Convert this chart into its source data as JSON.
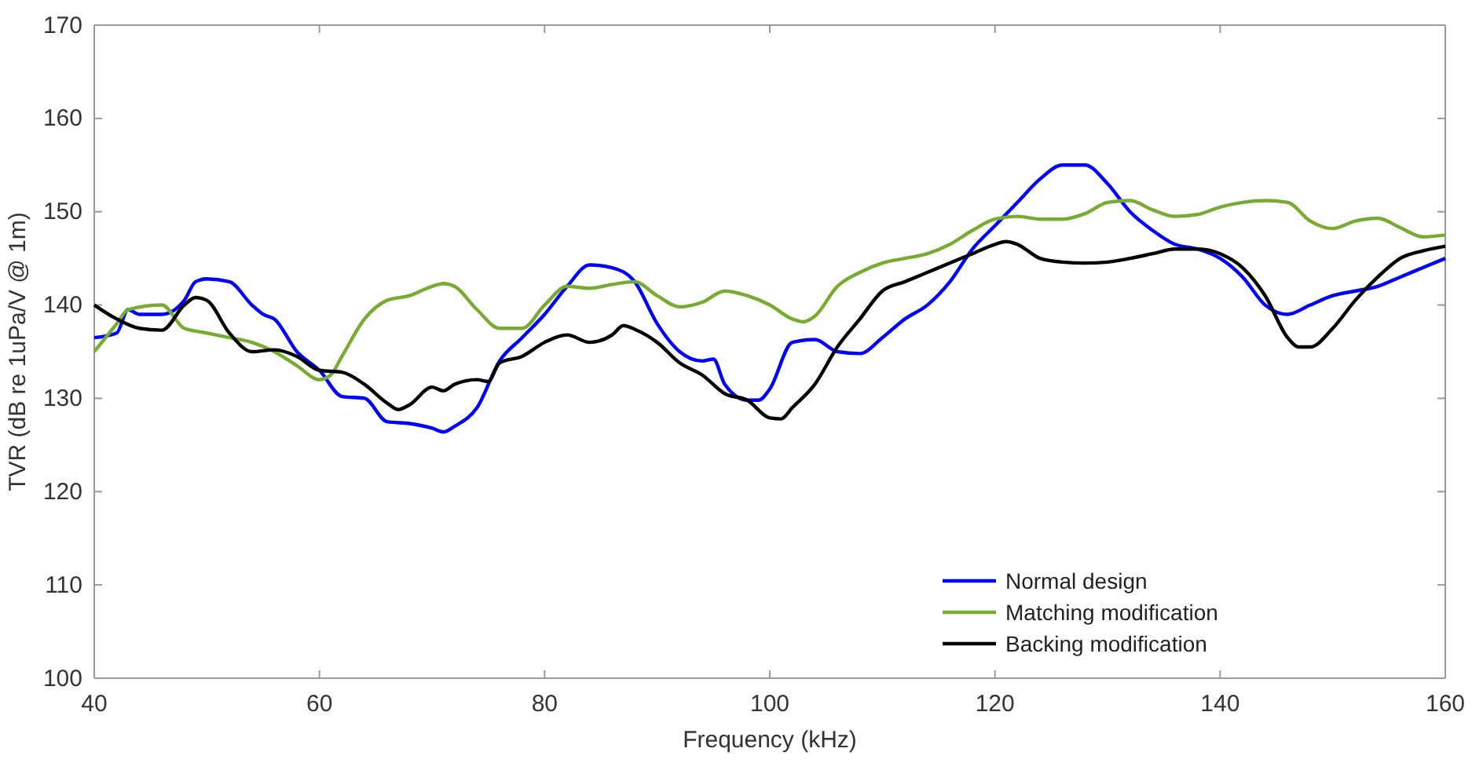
{
  "chart_data": {
    "type": "line",
    "xlabel": "Frequency (kHz)",
    "ylabel": "TVR (dB re 1uPa/V @ 1m)",
    "xlim": [
      40,
      160
    ],
    "xticks": [
      40,
      60,
      80,
      100,
      120,
      140,
      160
    ],
    "ylim": [
      100,
      170
    ],
    "yticks": [
      100,
      110,
      120,
      130,
      140,
      150,
      160,
      170
    ],
    "grid": false,
    "legend": "bottom right",
    "series": [
      {
        "name": "Normal design",
        "color": "#0000ff",
        "x": [
          40,
          42,
          43,
          44,
          46,
          48,
          49,
          50,
          52,
          54,
          55,
          56,
          58,
          60,
          62,
          64,
          66,
          68,
          70,
          71,
          72,
          74,
          76,
          78,
          80,
          82,
          84,
          86,
          88,
          90,
          92,
          94,
          95,
          96,
          98,
          99,
          100,
          102,
          104,
          106,
          108,
          110,
          112,
          114,
          116,
          118,
          120,
          122,
          124,
          126,
          128,
          130,
          132,
          134,
          136,
          138,
          140,
          142,
          144,
          146,
          148,
          150,
          152,
          154,
          156,
          158,
          160
        ],
        "values": [
          136.5,
          137,
          139.5,
          139,
          139,
          140.5,
          142.5,
          142.8,
          142.5,
          140,
          139,
          138.5,
          135,
          133,
          130.2,
          130,
          127.5,
          127.3,
          126.8,
          126.4,
          127,
          129,
          134,
          136.5,
          139,
          142,
          144.3,
          144,
          142.5,
          138,
          135,
          134,
          134.2,
          131.5,
          129.8,
          129.8,
          131,
          136,
          136.3,
          135,
          134.8,
          136.5,
          138.5,
          140,
          142.5,
          146,
          148.5,
          151,
          153.5,
          155,
          155,
          153,
          150,
          148,
          146.5,
          146,
          145,
          143,
          140,
          139,
          140,
          141,
          141.5,
          142,
          143,
          144,
          145
        ]
      },
      {
        "name": "Matching modification",
        "color": "#77ac30",
        "x": [
          40,
          42,
          43,
          46,
          48,
          50,
          52,
          54,
          56,
          58,
          60,
          61,
          62,
          64,
          66,
          68,
          70,
          71,
          72,
          74,
          76,
          78,
          80,
          82,
          84,
          86,
          88,
          90,
          92,
          94,
          96,
          98,
          100,
          102,
          103,
          104,
          106,
          108,
          110,
          112,
          114,
          116,
          118,
          120,
          122,
          124,
          126,
          128,
          130,
          132,
          134,
          136,
          138,
          140,
          142,
          144,
          146,
          148,
          150,
          152,
          154,
          156,
          158,
          160
        ],
        "values": [
          135,
          138,
          139.5,
          140,
          137.5,
          137,
          136.5,
          136,
          135,
          133.5,
          132,
          132.5,
          134.5,
          138.5,
          140.5,
          141,
          142,
          142.3,
          142,
          139.5,
          137.5,
          137.5,
          140,
          142,
          141.8,
          142.2,
          142.5,
          141,
          139.8,
          140.3,
          141.5,
          141,
          140,
          138.5,
          138.2,
          138.8,
          142,
          143.5,
          144.5,
          145,
          145.5,
          146.5,
          148,
          149.2,
          149.5,
          149.2,
          149.2,
          149.8,
          151,
          151.2,
          150.2,
          149.5,
          149.7,
          150.5,
          151,
          151.2,
          151,
          149,
          148.2,
          149,
          149.3,
          148.3,
          147.3,
          147.5
        ]
      },
      {
        "name": "Backing modification",
        "color": "#000000",
        "x": [
          40,
          42,
          44,
          46,
          48,
          49,
          50,
          52,
          54,
          56,
          58,
          60,
          62,
          64,
          66,
          67,
          68,
          70,
          71,
          72,
          74,
          75,
          76,
          78,
          80,
          82,
          84,
          86,
          87,
          88,
          90,
          92,
          94,
          96,
          98,
          100,
          101,
          102,
          104,
          106,
          108,
          110,
          112,
          114,
          116,
          118,
          120,
          121,
          122,
          124,
          126,
          128,
          130,
          132,
          134,
          136,
          138,
          140,
          142,
          144,
          146,
          147,
          148,
          150,
          152,
          154,
          156,
          158,
          160
        ],
        "values": [
          140,
          138.5,
          137.5,
          137.3,
          140,
          140.8,
          140.5,
          137,
          135,
          135.2,
          134.5,
          133,
          132.8,
          131.5,
          129.5,
          128.8,
          129.3,
          131.2,
          130.8,
          131.5,
          132,
          131.8,
          133.8,
          134.5,
          136,
          136.8,
          136,
          136.8,
          137.8,
          137.4,
          136,
          133.8,
          132.5,
          130.5,
          129.8,
          127.9,
          127.8,
          129,
          131.5,
          135.5,
          138.5,
          141.5,
          142.5,
          143.5,
          144.5,
          145.5,
          146.5,
          146.8,
          146.5,
          145,
          144.6,
          144.5,
          144.6,
          145,
          145.5,
          146,
          146,
          145.5,
          144,
          141,
          136.5,
          135.5,
          135.5,
          137.5,
          140.5,
          143,
          145,
          145.8,
          146.3
        ]
      }
    ]
  }
}
